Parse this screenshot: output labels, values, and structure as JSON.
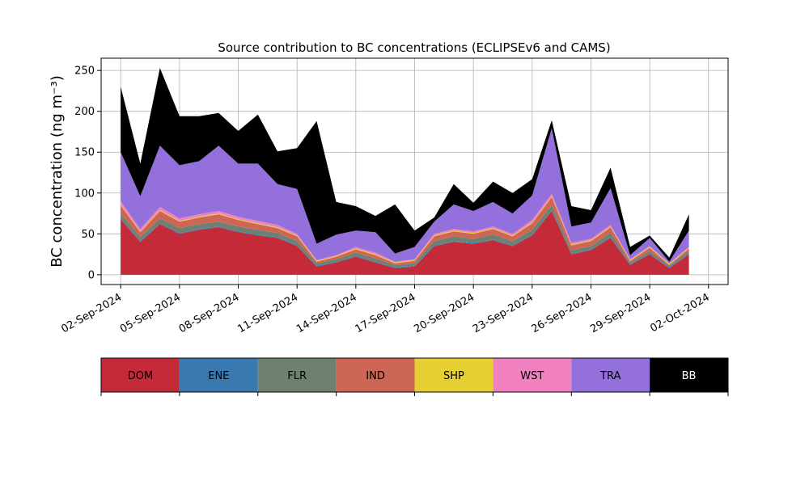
{
  "chart_data": {
    "type": "area",
    "title": "Source contribution to BC concentrations (ECLIPSEv6 and CAMS)",
    "ylabel": "BC concentration (ng m⁻³)",
    "xlabel": "",
    "grid": true,
    "ylim": [
      -12,
      265
    ],
    "xlim": [
      "2024-09-01",
      "2024-10-03"
    ],
    "x_ticks": [
      "02-Sep-2024",
      "05-Sep-2024",
      "08-Sep-2024",
      "11-Sep-2024",
      "14-Sep-2024",
      "17-Sep-2024",
      "20-Sep-2024",
      "23-Sep-2024",
      "26-Sep-2024",
      "29-Sep-2024",
      "02-Oct-2024"
    ],
    "y_ticks": [
      0,
      50,
      100,
      150,
      200,
      250
    ],
    "x": [
      "2024-09-02",
      "2024-09-03",
      "2024-09-04",
      "2024-09-05",
      "2024-09-06",
      "2024-09-07",
      "2024-09-08",
      "2024-09-09",
      "2024-09-10",
      "2024-09-11",
      "2024-09-12",
      "2024-09-13",
      "2024-09-14",
      "2024-09-15",
      "2024-09-16",
      "2024-09-17",
      "2024-09-18",
      "2024-09-19",
      "2024-09-20",
      "2024-09-21",
      "2024-09-22",
      "2024-09-23",
      "2024-09-24",
      "2024-09-25",
      "2024-09-26",
      "2024-09-27",
      "2024-09-28",
      "2024-09-29",
      "2024-09-30",
      "2024-10-01"
    ],
    "series": [
      {
        "name": "DOM",
        "color": "#c42a37",
        "values": [
          68,
          40,
          62,
          50,
          55,
          58,
          52,
          48,
          45,
          35,
          10,
          15,
          22,
          15,
          8,
          10,
          35,
          40,
          38,
          42,
          35,
          48,
          78,
          25,
          30,
          45,
          12,
          25,
          8,
          25
        ]
      },
      {
        "name": "ENE",
        "color": "#3a78b0",
        "values": [
          1,
          1,
          1,
          1,
          1,
          1,
          1,
          1,
          1,
          1,
          1,
          1,
          1,
          1,
          1,
          1,
          1,
          1,
          1,
          1,
          1,
          1,
          1,
          1,
          1,
          1,
          1,
          1,
          1,
          1
        ]
      },
      {
        "name": "FLR",
        "color": "#6e8070",
        "values": [
          6,
          5,
          6,
          6,
          6,
          6,
          6,
          6,
          5,
          5,
          3,
          3,
          4,
          4,
          3,
          3,
          5,
          6,
          5,
          6,
          5,
          6,
          6,
          4,
          4,
          5,
          2,
          3,
          2,
          3
        ]
      },
      {
        "name": "IND",
        "color": "#cd6655",
        "values": [
          10,
          6,
          9,
          8,
          8,
          9,
          8,
          7,
          6,
          6,
          2,
          3,
          4,
          4,
          2,
          3,
          6,
          6,
          6,
          7,
          6,
          8,
          10,
          6,
          6,
          7,
          2,
          4,
          1,
          3
        ]
      },
      {
        "name": "SHP",
        "color": "#e6cf33",
        "values": [
          1,
          1,
          1,
          1,
          1,
          1,
          1,
          1,
          1,
          1,
          1,
          1,
          1,
          1,
          1,
          1,
          1,
          1,
          1,
          1,
          1,
          1,
          1,
          1,
          1,
          1,
          1,
          1,
          1,
          1
        ]
      },
      {
        "name": "WST",
        "color": "#f080be",
        "values": [
          4,
          3,
          4,
          3,
          3,
          3,
          3,
          3,
          3,
          2,
          1,
          1,
          2,
          2,
          1,
          1,
          2,
          2,
          2,
          2,
          2,
          3,
          3,
          2,
          2,
          2,
          1,
          1,
          1,
          1
        ]
      },
      {
        "name": "TRA",
        "color": "#9370db",
        "values": [
          60,
          40,
          75,
          65,
          65,
          80,
          65,
          70,
          50,
          55,
          20,
          25,
          20,
          25,
          10,
          15,
          15,
          30,
          25,
          30,
          25,
          30,
          80,
          20,
          20,
          45,
          5,
          10,
          2,
          20
        ]
      },
      {
        "name": "BB",
        "color": "#000000",
        "values": [
          80,
          40,
          95,
          60,
          55,
          40,
          40,
          60,
          40,
          50,
          150,
          40,
          30,
          20,
          60,
          20,
          5,
          25,
          10,
          25,
          25,
          20,
          10,
          25,
          15,
          25,
          10,
          3,
          5,
          20
        ]
      }
    ],
    "legend": {
      "placement": "bottom colorbar",
      "entries": [
        "DOM",
        "ENE",
        "FLR",
        "IND",
        "SHP",
        "WST",
        "TRA",
        "BB"
      ]
    }
  }
}
